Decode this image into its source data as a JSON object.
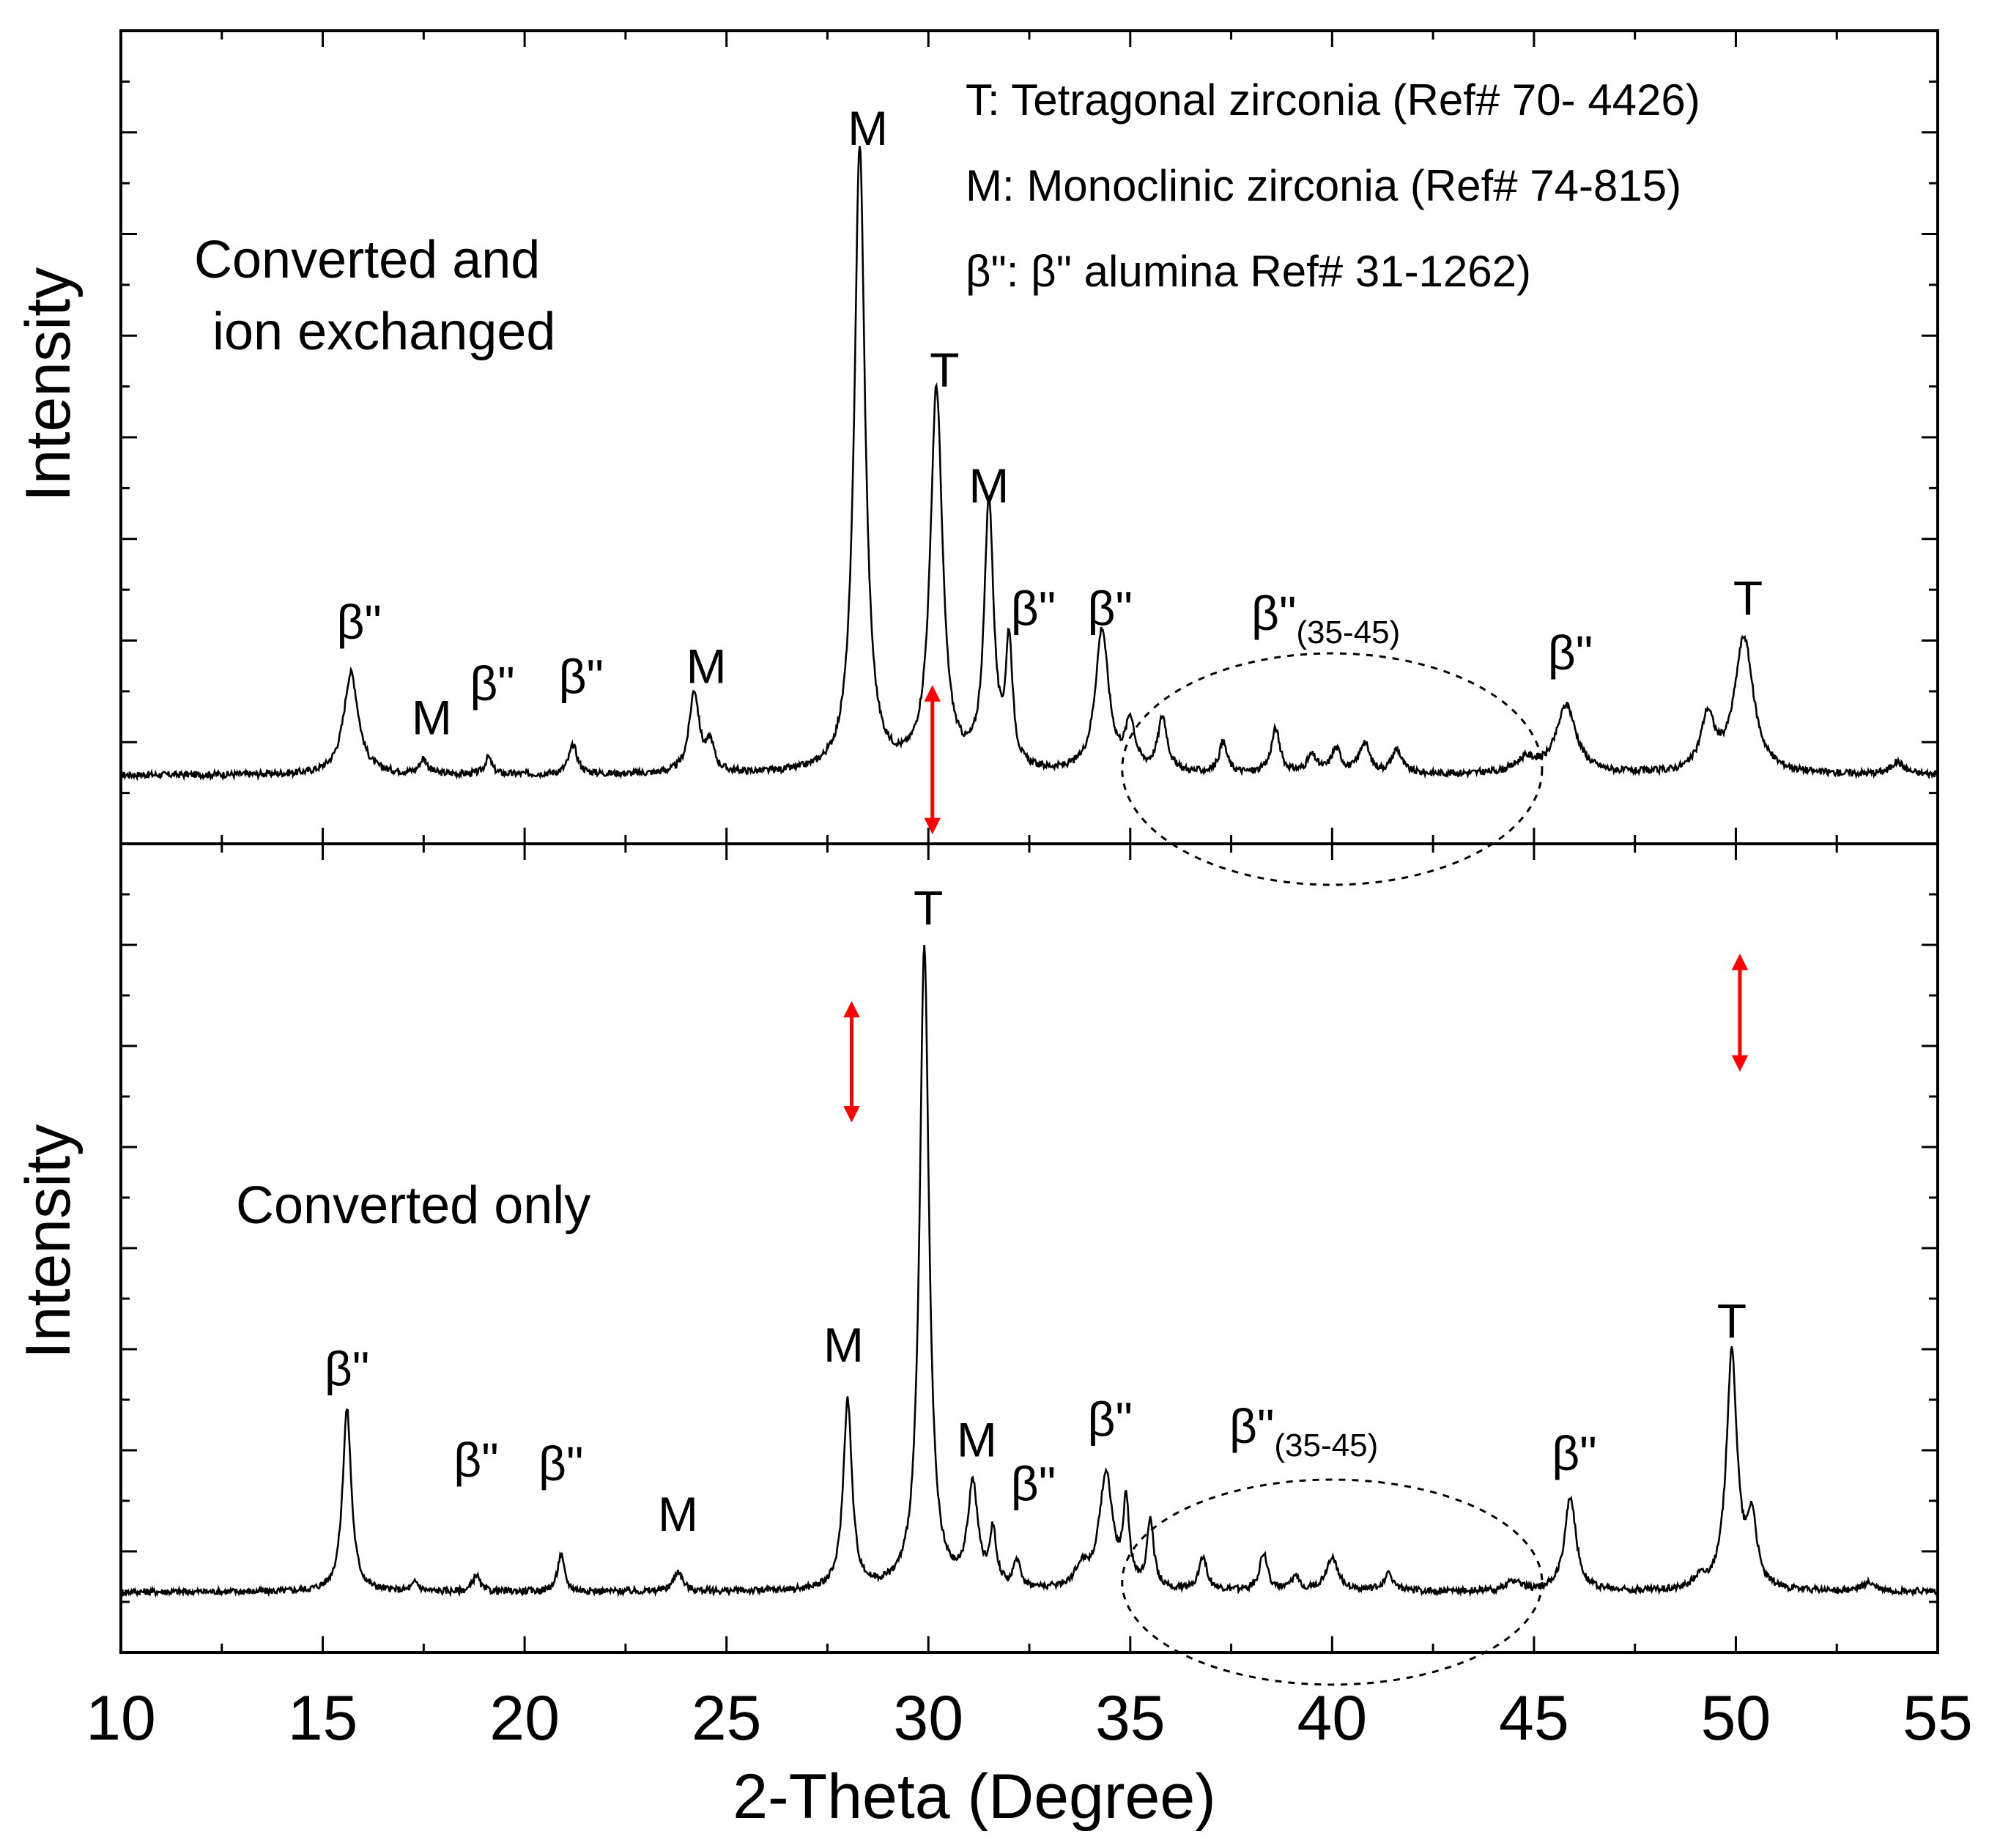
{
  "chart_data": {
    "type": "line",
    "xlabel": "2-Theta (Degree)",
    "xlim": [
      10,
      55
    ],
    "xticks": [
      "10",
      "15",
      "20",
      "25",
      "30",
      "35",
      "40",
      "45",
      "50",
      "55"
    ],
    "legend": [
      "T: Tetragonal zirconia (Ref# 70- 4426)",
      "M: Monoclinic zirconia (Ref# 74-815)",
      "β\": β\" alumina Ref# 31-1262)"
    ],
    "region_label": "β\"",
    "region_sub": "(35-45)",
    "panels": [
      {
        "name": "Converted and ion exchanged",
        "title_lines": [
          "Converted and",
          "ion exchanged"
        ],
        "ylabel": "Intensity",
        "ylim": [
          0,
          100
        ],
        "baseline": 4.5,
        "peaks": [
          {
            "x": 15.7,
            "h": 15,
            "w": 0.22
          },
          {
            "x": 17.5,
            "h": 2.2,
            "w": 0.12
          },
          {
            "x": 19.1,
            "h": 2.5,
            "w": 0.1
          },
          {
            "x": 21.2,
            "h": 4.2,
            "w": 0.13
          },
          {
            "x": 24.2,
            "h": 12,
            "w": 0.15
          },
          {
            "x": 24.6,
            "h": 4,
            "w": 0.12
          },
          {
            "x": 28.3,
            "h": 92,
            "w": 0.16
          },
          {
            "x": 30.2,
            "h": 56,
            "w": 0.18
          },
          {
            "x": 31.5,
            "h": 39,
            "w": 0.14
          },
          {
            "x": 32.0,
            "h": 18,
            "w": 0.1
          },
          {
            "x": 34.3,
            "h": 21,
            "w": 0.2
          },
          {
            "x": 35.0,
            "h": 7,
            "w": 0.14
          },
          {
            "x": 35.8,
            "h": 8,
            "w": 0.14
          },
          {
            "x": 37.3,
            "h": 4.5,
            "w": 0.12
          },
          {
            "x": 38.6,
            "h": 6.5,
            "w": 0.13
          },
          {
            "x": 39.5,
            "h": 2.5,
            "w": 0.15
          },
          {
            "x": 40.1,
            "h": 3.5,
            "w": 0.15
          },
          {
            "x": 40.8,
            "h": 4.5,
            "w": 0.15
          },
          {
            "x": 41.6,
            "h": 3.5,
            "w": 0.15
          },
          {
            "x": 44.8,
            "h": 2,
            "w": 0.3
          },
          {
            "x": 45.8,
            "h": 10,
            "w": 0.3
          },
          {
            "x": 49.3,
            "h": 8,
            "w": 0.2
          },
          {
            "x": 50.2,
            "h": 20,
            "w": 0.28
          },
          {
            "x": 54.0,
            "h": 1.8,
            "w": 0.2
          }
        ],
        "labels": [
          {
            "x": 15.9,
            "y": 24.5,
            "text": "β\""
          },
          {
            "x": 17.7,
            "y": 10.5,
            "text": "M"
          },
          {
            "x": 19.2,
            "y": 15.5,
            "text": "β\""
          },
          {
            "x": 21.4,
            "y": 16.5,
            "text": "β\""
          },
          {
            "x": 24.5,
            "y": 18,
            "text": "M"
          },
          {
            "x": 28.5,
            "y": 97,
            "text": "M"
          },
          {
            "x": 30.4,
            "y": 61.5,
            "text": "T"
          },
          {
            "x": 31.5,
            "y": 44.5,
            "text": "M"
          },
          {
            "x": 32.6,
            "y": 26.5,
            "text": "β\""
          },
          {
            "x": 34.5,
            "y": 26.5,
            "text": "β\""
          },
          {
            "x": 50.3,
            "y": 28,
            "text": "T"
          },
          {
            "x": 45.9,
            "y": 20,
            "text": "β\""
          }
        ],
        "arrows": [
          {
            "x": 30.1,
            "y1": 16.5,
            "y2": -3
          }
        ]
      },
      {
        "name": "Converted only",
        "title_lines": [
          "Converted only"
        ],
        "ylabel": "Intensity",
        "ylim": [
          0,
          100
        ],
        "baseline": 4.5,
        "peaks": [
          {
            "x": 15.6,
            "h": 27,
            "w": 0.13
          },
          {
            "x": 17.3,
            "h": 1.3,
            "w": 0.1
          },
          {
            "x": 18.8,
            "h": 2.5,
            "w": 0.1
          },
          {
            "x": 20.9,
            "h": 5.5,
            "w": 0.1
          },
          {
            "x": 23.8,
            "h": 3,
            "w": 0.13
          },
          {
            "x": 28.0,
            "h": 28,
            "w": 0.13
          },
          {
            "x": 29.9,
            "h": 95,
            "w": 0.14
          },
          {
            "x": 31.1,
            "h": 15,
            "w": 0.15
          },
          {
            "x": 31.6,
            "h": 8,
            "w": 0.1
          },
          {
            "x": 32.2,
            "h": 4,
            "w": 0.1
          },
          {
            "x": 33.8,
            "h": 3,
            "w": 0.2
          },
          {
            "x": 34.4,
            "h": 17,
            "w": 0.2
          },
          {
            "x": 34.9,
            "h": 12,
            "w": 0.09
          },
          {
            "x": 35.5,
            "h": 10,
            "w": 0.1
          },
          {
            "x": 36.8,
            "h": 5,
            "w": 0.12
          },
          {
            "x": 38.3,
            "h": 5.5,
            "w": 0.12
          },
          {
            "x": 39.1,
            "h": 2,
            "w": 0.12
          },
          {
            "x": 40.0,
            "h": 5,
            "w": 0.18
          },
          {
            "x": 41.4,
            "h": 2.5,
            "w": 0.15
          },
          {
            "x": 44.5,
            "h": 1.5,
            "w": 0.2
          },
          {
            "x": 45.9,
            "h": 14,
            "w": 0.17
          },
          {
            "x": 49.1,
            "h": 1.5,
            "w": 0.2
          },
          {
            "x": 49.9,
            "h": 35,
            "w": 0.16
          },
          {
            "x": 50.4,
            "h": 10,
            "w": 0.14
          },
          {
            "x": 53.3,
            "h": 1.2,
            "w": 0.2
          }
        ],
        "labels": [
          {
            "x": 15.6,
            "y": 35,
            "text": "β\""
          },
          {
            "x": 18.8,
            "y": 21.5,
            "text": "β\""
          },
          {
            "x": 20.9,
            "y": 21,
            "text": "β\""
          },
          {
            "x": 23.8,
            "y": 13.5,
            "text": "M"
          },
          {
            "x": 27.9,
            "y": 38.5,
            "text": "M"
          },
          {
            "x": 30.0,
            "y": 103,
            "text": "T"
          },
          {
            "x": 31.2,
            "y": 24.5,
            "text": "M"
          },
          {
            "x": 32.6,
            "y": 18,
            "text": "β\""
          },
          {
            "x": 34.5,
            "y": 27.5,
            "text": "β\""
          },
          {
            "x": 49.9,
            "y": 42,
            "text": "T"
          },
          {
            "x": 46.0,
            "y": 22.5,
            "text": "β\""
          }
        ],
        "arrows": [
          {
            "x": 28.1,
            "y1": 90.5,
            "y2": 75
          },
          {
            "x": 50.1,
            "y1": 97.5,
            "y2": 82.5
          }
        ]
      }
    ]
  }
}
